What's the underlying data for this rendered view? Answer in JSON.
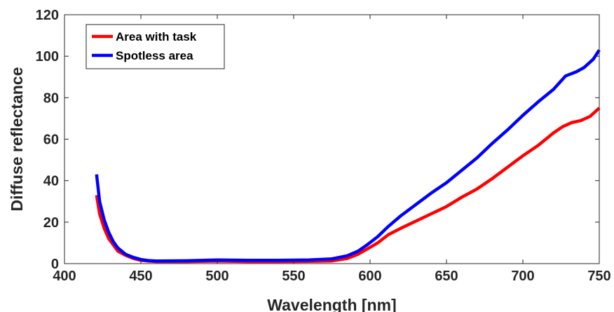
{
  "chart_data": {
    "type": "line",
    "xlabel": "Wavelength [nm]",
    "ylabel": "Diffuse reflectance",
    "xlim": [
      400,
      750
    ],
    "ylim": [
      0,
      120
    ],
    "xticks": [
      400,
      450,
      500,
      550,
      600,
      650,
      700,
      750
    ],
    "yticks": [
      0,
      20,
      40,
      60,
      80,
      100,
      120
    ],
    "grid": false,
    "legend_position": "top-left",
    "series": [
      {
        "name": "Area with task",
        "color": "#ff0000",
        "points": [
          [
            421,
            33
          ],
          [
            423,
            24
          ],
          [
            426,
            17
          ],
          [
            429,
            12
          ],
          [
            432,
            9
          ],
          [
            435,
            6
          ],
          [
            440,
            4
          ],
          [
            445,
            2.5
          ],
          [
            450,
            1.6
          ],
          [
            455,
            1.2
          ],
          [
            460,
            1.0
          ],
          [
            480,
            1.0
          ],
          [
            500,
            1.2
          ],
          [
            520,
            1.0
          ],
          [
            540,
            1.0
          ],
          [
            560,
            1.1
          ],
          [
            575,
            1.3
          ],
          [
            585,
            2.5
          ],
          [
            592,
            4.5
          ],
          [
            598,
            7
          ],
          [
            605,
            10
          ],
          [
            612,
            14
          ],
          [
            620,
            17
          ],
          [
            630,
            20.5
          ],
          [
            640,
            24
          ],
          [
            650,
            27.5
          ],
          [
            660,
            32
          ],
          [
            670,
            36
          ],
          [
            680,
            41
          ],
          [
            690,
            46.5
          ],
          [
            700,
            52
          ],
          [
            710,
            57
          ],
          [
            720,
            63
          ],
          [
            726,
            66
          ],
          [
            732,
            68
          ],
          [
            738,
            69
          ],
          [
            744,
            71
          ],
          [
            750,
            75
          ]
        ]
      },
      {
        "name": "Spotless area",
        "color": "#0000ff",
        "points": [
          [
            421,
            43
          ],
          [
            423,
            30
          ],
          [
            426,
            21
          ],
          [
            429,
            15
          ],
          [
            432,
            10.5
          ],
          [
            435,
            7.5
          ],
          [
            440,
            4.5
          ],
          [
            445,
            3
          ],
          [
            450,
            2
          ],
          [
            455,
            1.5
          ],
          [
            460,
            1.3
          ],
          [
            480,
            1.4
          ],
          [
            500,
            1.8
          ],
          [
            520,
            1.6
          ],
          [
            540,
            1.6
          ],
          [
            560,
            1.8
          ],
          [
            575,
            2.3
          ],
          [
            585,
            3.8
          ],
          [
            592,
            6
          ],
          [
            598,
            9
          ],
          [
            605,
            13
          ],
          [
            612,
            18
          ],
          [
            620,
            23
          ],
          [
            630,
            28.5
          ],
          [
            640,
            34
          ],
          [
            650,
            39
          ],
          [
            660,
            45
          ],
          [
            670,
            51
          ],
          [
            680,
            58
          ],
          [
            690,
            64.5
          ],
          [
            700,
            71.5
          ],
          [
            710,
            78
          ],
          [
            720,
            84
          ],
          [
            728,
            90.5
          ],
          [
            735,
            92.5
          ],
          [
            740,
            94.5
          ],
          [
            746,
            98.5
          ],
          [
            750,
            103
          ]
        ]
      }
    ]
  }
}
